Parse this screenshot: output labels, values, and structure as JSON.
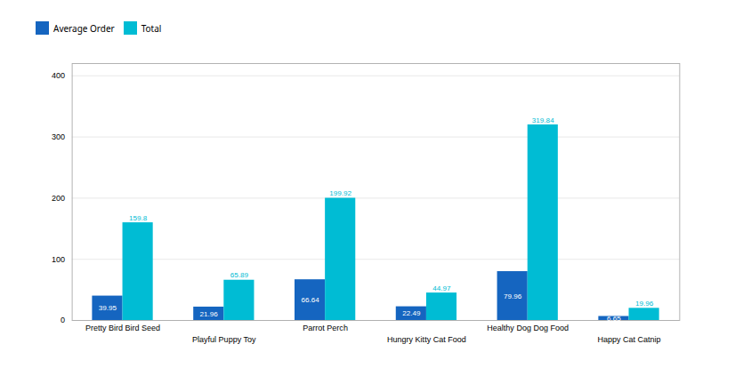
{
  "chart_data": {
    "type": "bar",
    "categories": [
      "Pretty Bird Bird Seed",
      "Playful Puppy Toy",
      "Parrot Perch",
      "Hungry Kitty Cat Food",
      "Healthy Dog Dog Food",
      "Happy Cat Catnip"
    ],
    "series": [
      {
        "name": "Average Order",
        "color": "#1565c0",
        "values": [
          39.95,
          21.96,
          66.64,
          22.49,
          79.96,
          6.65
        ]
      },
      {
        "name": "Total",
        "color": "#00bcd4",
        "values": [
          159.8,
          65.89,
          199.92,
          44.97,
          319.84,
          19.96
        ]
      }
    ],
    "ylim": [
      0,
      420
    ],
    "yticks": [
      0,
      100,
      200,
      300,
      400
    ],
    "grid": true,
    "legend": "top-left",
    "data_labels": true
  }
}
